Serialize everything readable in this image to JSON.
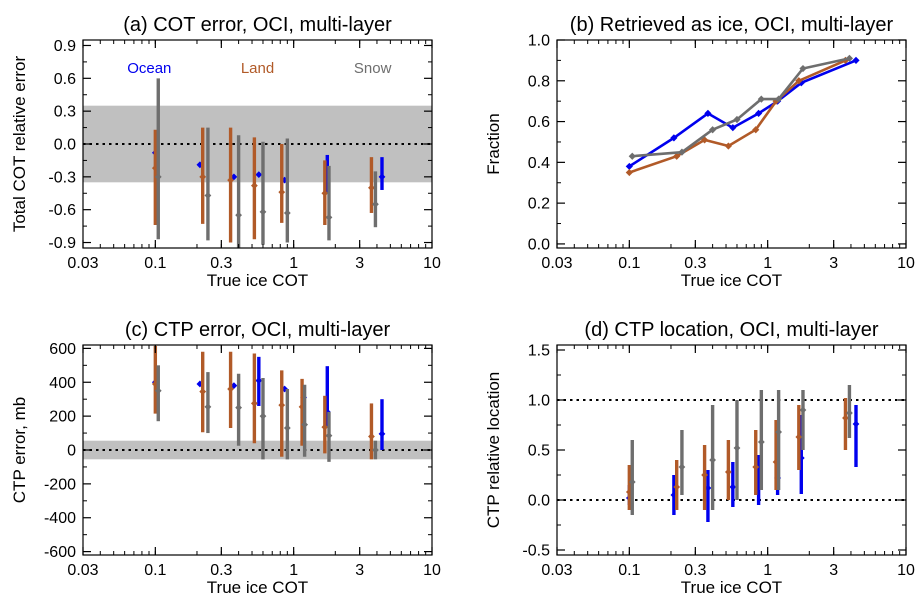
{
  "chart_data": [
    {
      "type": "scatter",
      "title": "(a) COT error, OCI, multi-layer",
      "xlabel": "True ice COT",
      "ylabel": "Total COT relative error",
      "xscale": "log",
      "xlim": [
        0.03,
        10
      ],
      "ylim": [
        -0.95,
        0.95
      ],
      "xticks": [
        0.03,
        0.1,
        0.3,
        1,
        3,
        10
      ],
      "xtick_labels": [
        "0.03",
        "0.1",
        "0.3",
        "1",
        "3",
        "10"
      ],
      "yticks": [
        -0.9,
        -0.6,
        -0.3,
        0,
        0.3,
        0.6,
        0.9
      ],
      "ytick_labels": [
        "-0.9",
        "-0.6",
        "-0.3",
        "0.0",
        "0.3",
        "0.6",
        "0.9"
      ],
      "band": [
        -0.35,
        0.35
      ],
      "ref_lines": [
        0
      ],
      "legend": [
        "Ocean",
        "Land",
        "Snow"
      ],
      "legend_placement": "top",
      "series": [
        {
          "name": "Ocean",
          "color": "#0000ee",
          "x": [
            0.1,
            0.21,
            0.37,
            0.56,
            0.86,
            1.75,
            4.35
          ],
          "y": [
            -0.08,
            -0.19,
            -0.3,
            -0.28,
            -0.33,
            -0.32,
            -0.3
          ],
          "low": [
            -0.08,
            -0.19,
            -0.3,
            -0.28,
            -0.33,
            -0.45,
            -0.42
          ],
          "high": [
            -0.08,
            -0.19,
            -0.3,
            -0.28,
            -0.33,
            -0.1,
            -0.12
          ]
        },
        {
          "name": "Land",
          "color": "#b15a28",
          "x": [
            0.1,
            0.22,
            0.35,
            0.52,
            0.82,
            1.68,
            3.65
          ],
          "y": [
            -0.22,
            -0.3,
            -0.33,
            -0.38,
            -0.44,
            -0.45,
            -0.4
          ],
          "low": [
            -0.74,
            -0.73,
            -0.9,
            -0.87,
            -0.72,
            -0.74,
            -0.63
          ],
          "high": [
            0.13,
            0.15,
            0.15,
            0.06,
            0.0,
            -0.15,
            -0.12
          ]
        },
        {
          "name": "Snow",
          "color": "#6e6e6e",
          "x": [
            0.105,
            0.24,
            0.4,
            0.6,
            0.9,
            1.8,
            3.9
          ],
          "y": [
            -0.3,
            -0.47,
            -0.65,
            -0.62,
            -0.63,
            -0.67,
            -0.55
          ],
          "low": [
            -0.87,
            -0.88,
            -0.95,
            -0.92,
            -0.9,
            -0.88,
            -0.76
          ],
          "high": [
            0.6,
            0.15,
            0.08,
            0.02,
            0.05,
            -0.2,
            -0.25
          ]
        }
      ]
    },
    {
      "type": "line",
      "title": "(b) Retrieved as ice, OCI, multi-layer",
      "xlabel": "True ice COT",
      "ylabel": "Fraction",
      "xscale": "log",
      "xlim": [
        0.03,
        10
      ],
      "ylim": [
        -0.02,
        1.0
      ],
      "xticks": [
        0.03,
        0.1,
        0.3,
        1,
        3,
        10
      ],
      "xtick_labels": [
        "0.03",
        "0.1",
        "0.3",
        "1",
        "3",
        "10"
      ],
      "yticks": [
        0.0,
        0.2,
        0.4,
        0.6,
        0.8,
        1.0
      ],
      "ytick_labels": [
        "0.0",
        "0.2",
        "0.4",
        "0.6",
        "0.8",
        "1.0"
      ],
      "series": [
        {
          "name": "Ocean",
          "color": "#0000ee",
          "x": [
            0.1,
            0.21,
            0.37,
            0.56,
            0.86,
            1.18,
            1.75,
            4.35
          ],
          "y": [
            0.38,
            0.52,
            0.64,
            0.57,
            0.64,
            0.7,
            0.79,
            0.9
          ]
        },
        {
          "name": "Land",
          "color": "#b15a28",
          "x": [
            0.1,
            0.22,
            0.35,
            0.52,
            0.82,
            1.15,
            1.68,
            3.65
          ],
          "y": [
            0.35,
            0.43,
            0.51,
            0.48,
            0.56,
            0.7,
            0.8,
            0.9
          ]
        },
        {
          "name": "Snow",
          "color": "#6e6e6e",
          "x": [
            0.105,
            0.24,
            0.4,
            0.6,
            0.9,
            1.2,
            1.8,
            3.9
          ],
          "y": [
            0.43,
            0.45,
            0.56,
            0.61,
            0.71,
            0.71,
            0.86,
            0.91
          ]
        }
      ]
    },
    {
      "type": "scatter",
      "title": "(c) CTP error, OCI, multi-layer",
      "xlabel": "True ice COT",
      "ylabel": "CTP error, mb",
      "xscale": "log",
      "xlim": [
        0.03,
        10
      ],
      "ylim": [
        -620,
        620
      ],
      "xticks": [
        0.03,
        0.1,
        0.3,
        1,
        3,
        10
      ],
      "xtick_labels": [
        "0.03",
        "0.1",
        "0.3",
        "1",
        "3",
        "10"
      ],
      "yticks": [
        -600,
        -400,
        -200,
        0,
        200,
        400,
        600
      ],
      "ytick_labels": [
        "-600",
        "-400",
        "-200",
        "0",
        "200",
        "400",
        "600"
      ],
      "band": [
        -55,
        55
      ],
      "ref_lines": [
        0
      ],
      "series": [
        {
          "name": "Ocean",
          "color": "#0000ee",
          "x": [
            0.1,
            0.21,
            0.37,
            0.56,
            0.86,
            1.18,
            1.75,
            4.35
          ],
          "y": [
            400,
            390,
            380,
            410,
            360,
            310,
            225,
            95
          ],
          "low": [
            400,
            390,
            380,
            260,
            360,
            310,
            130,
            0
          ],
          "high": [
            400,
            390,
            380,
            550,
            360,
            310,
            495,
            300
          ]
        },
        {
          "name": "Land",
          "color": "#b15a28",
          "x": [
            0.1,
            0.22,
            0.35,
            0.52,
            0.82,
            1.15,
            1.68,
            3.65
          ],
          "y": [
            390,
            345,
            360,
            275,
            265,
            255,
            135,
            80
          ],
          "low": [
            215,
            105,
            130,
            40,
            -40,
            25,
            -20,
            -55
          ],
          "high": [
            615,
            580,
            580,
            570,
            470,
            420,
            320,
            275
          ]
        },
        {
          "name": "Snow",
          "color": "#6e6e6e",
          "x": [
            0.105,
            0.24,
            0.4,
            0.6,
            0.9,
            1.2,
            1.8,
            3.9
          ],
          "y": [
            350,
            255,
            250,
            200,
            130,
            150,
            85,
            0
          ],
          "low": [
            170,
            100,
            25,
            -55,
            -55,
            -40,
            -70,
            -55
          ],
          "high": [
            500,
            460,
            450,
            425,
            360,
            385,
            225,
            55
          ]
        }
      ]
    },
    {
      "type": "scatter",
      "title": "(d) CTP location, OCI, multi-layer",
      "xlabel": "True ice COT",
      "ylabel": "CTP relative location",
      "xscale": "log",
      "xlim": [
        0.03,
        10
      ],
      "ylim": [
        -0.55,
        1.55
      ],
      "xticks": [
        0.03,
        0.1,
        0.3,
        1,
        3,
        10
      ],
      "xtick_labels": [
        "0.03",
        "0.1",
        "0.3",
        "1",
        "3",
        "10"
      ],
      "yticks": [
        -0.5,
        0.0,
        0.5,
        1.0,
        1.5
      ],
      "ytick_labels": [
        "-0.5",
        "0.0",
        "0.5",
        "1.0",
        "1.5"
      ],
      "ref_lines": [
        0,
        1
      ],
      "series": [
        {
          "name": "Ocean",
          "color": "#0000ee",
          "x": [
            0.1,
            0.21,
            0.37,
            0.56,
            0.86,
            1.18,
            1.75,
            4.35
          ],
          "y": [
            0.02,
            0.05,
            0.12,
            0.13,
            0.18,
            0.22,
            0.42,
            0.76
          ],
          "low": [
            -0.05,
            -0.15,
            -0.22,
            -0.07,
            -0.05,
            0.05,
            0.06,
            0.33
          ],
          "high": [
            0.15,
            0.25,
            0.3,
            0.38,
            0.45,
            0.6,
            0.85,
            0.95
          ]
        },
        {
          "name": "Land",
          "color": "#b15a28",
          "x": [
            0.1,
            0.22,
            0.35,
            0.52,
            0.82,
            1.15,
            1.68,
            3.65
          ],
          "y": [
            0.08,
            0.13,
            0.25,
            0.28,
            0.33,
            0.38,
            0.63,
            0.82
          ],
          "low": [
            -0.1,
            -0.1,
            -0.1,
            0.0,
            0.05,
            0.1,
            0.3,
            0.5
          ],
          "high": [
            0.35,
            0.4,
            0.55,
            0.6,
            0.7,
            0.8,
            0.95,
            1.02
          ]
        },
        {
          "name": "Snow",
          "color": "#6e6e6e",
          "x": [
            0.105,
            0.24,
            0.4,
            0.6,
            0.9,
            1.2,
            1.8,
            3.9
          ],
          "y": [
            0.18,
            0.33,
            0.4,
            0.52,
            0.58,
            0.68,
            0.9,
            0.87
          ],
          "low": [
            -0.15,
            0.05,
            -0.1,
            0.0,
            0.1,
            0.1,
            0.5,
            0.62
          ],
          "high": [
            0.6,
            0.7,
            0.95,
            1.0,
            1.1,
            1.1,
            1.1,
            1.15
          ]
        }
      ]
    }
  ]
}
